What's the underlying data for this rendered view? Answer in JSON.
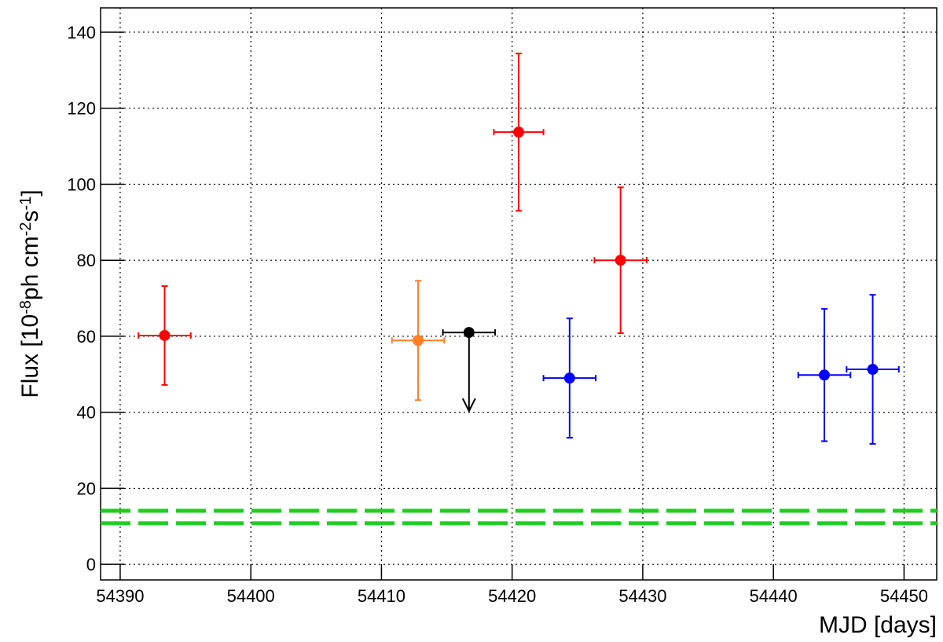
{
  "chart_data": {
    "type": "scatter",
    "xlabel": "MJD [days]",
    "ylabel_parts": [
      "Flux [10",
      "-8",
      "ph cm",
      "-2",
      "s",
      "-1",
      "]"
    ],
    "xlim": [
      54388.5,
      54452.5
    ],
    "ylim": [
      -4.1,
      146.4
    ],
    "xticks": [
      54390,
      54400,
      54410,
      54420,
      54430,
      54440,
      54450
    ],
    "yticks": [
      0,
      20,
      40,
      60,
      80,
      100,
      120,
      140
    ],
    "grid": true,
    "series": [
      {
        "color": "#ff0000",
        "x": [
          54393.4,
          54420.5,
          54428.3
        ],
        "values": [
          60.2,
          113.7,
          80.0
        ],
        "yerr": [
          13.0,
          20.7,
          19.2
        ],
        "xerr": [
          2.0,
          1.9,
          2.0
        ]
      },
      {
        "color": "#ff7f2a",
        "x": [
          54412.8
        ],
        "values": [
          58.9
        ],
        "yerr": [
          15.7
        ],
        "xerr": [
          2.0
        ]
      },
      {
        "color": "#000000",
        "x": [
          54416.7
        ],
        "values": [
          61.0
        ],
        "xerr": [
          2.0
        ],
        "upper_limit": true
      },
      {
        "color": "#0000ff",
        "x": [
          54424.4,
          54443.9,
          54447.6
        ],
        "values": [
          49.0,
          49.8,
          51.3
        ],
        "yerr": [
          15.7,
          17.4,
          19.6
        ],
        "xerr": [
          2.0,
          2.0,
          2.0
        ]
      }
    ],
    "hlines": [
      {
        "value": 14.1,
        "color": "#22cc22"
      },
      {
        "value": 10.8,
        "color": "#22cc22"
      }
    ]
  }
}
